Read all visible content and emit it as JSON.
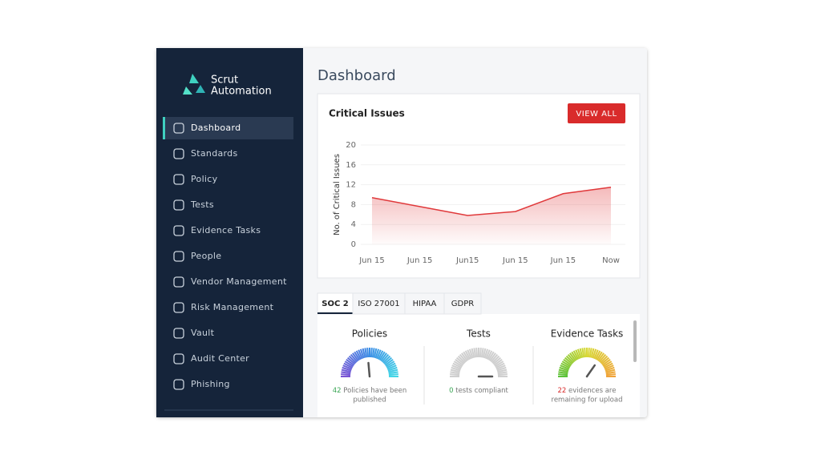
{
  "logo": [
    "Scrut",
    "Automation"
  ],
  "nav": [
    "Dashboard",
    "Standards",
    "Policy",
    "Tests",
    "Evidence Tasks",
    "People",
    "Vendor Management",
    "Risk Management",
    "Vault",
    "Audit Center",
    "Phishing"
  ],
  "page_title": "Dashboard",
  "card": {
    "title": "Critical Issues",
    "button": "VIEW ALL"
  },
  "chart_data": {
    "type": "line",
    "y_label": "No. of Critical Issues",
    "categories": [
      "Jun 15",
      "Jun 15",
      "Jun15",
      "Jun 15",
      "Jun 15",
      "Now"
    ],
    "series": [
      {
        "color": "#e0393b",
        "values": [
          9.4,
          7.6,
          5.8,
          6.6,
          10.2,
          11.5
        ]
      }
    ],
    "ylim": [
      0,
      20
    ],
    "yticks": [
      0,
      4,
      8,
      12,
      16,
      20
    ],
    "grid": true
  },
  "tabs": [
    "SOC 2",
    "ISO 27001",
    "HIPAA",
    "GDPR"
  ],
  "gauges": [
    {
      "title": "Policies",
      "count": 42,
      "text": [
        "Policies have been",
        "published"
      ],
      "colors": [
        "#7a55d4",
        "#3c8fe6",
        "#45d6e6"
      ]
    },
    {
      "title": "Tests",
      "count": 0,
      "text": [
        "tests compliant"
      ],
      "colors": [
        "#cfcfcf",
        "#cfcfcf",
        "#cfcfcf"
      ]
    },
    {
      "title": "Evidence Tasks",
      "count": 22,
      "text": [
        "evidences are",
        "remaining for upload"
      ],
      "colors": [
        "#5cc23a",
        "#d8d834",
        "#f0a33a"
      ]
    }
  ]
}
